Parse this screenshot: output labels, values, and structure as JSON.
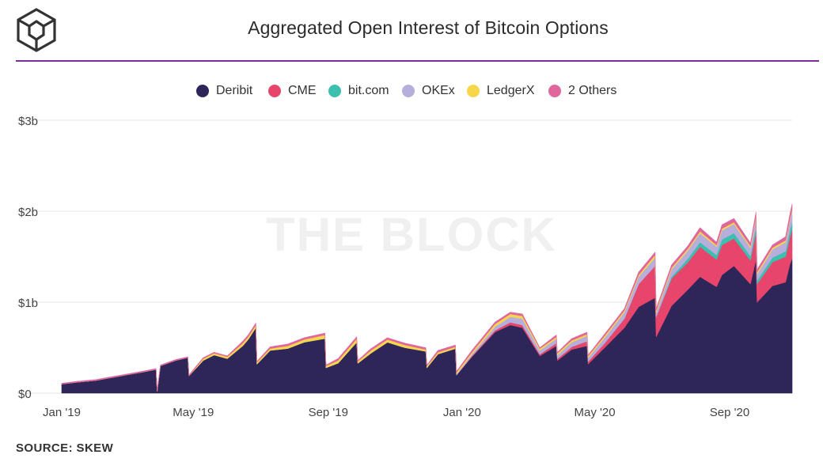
{
  "title": "Aggregated Open Interest of Bitcoin Options",
  "watermark": "THE BLOCK",
  "source": "SOURCE: SKEW",
  "logo_icon": "cube-logo-icon",
  "chart_data": {
    "type": "area",
    "stacked": true,
    "title": "Aggregated Open Interest of Bitcoin Options",
    "xlabel": "",
    "ylabel": "",
    "ylim": [
      0,
      3
    ],
    "yunit": "$b",
    "yticks": [
      0,
      1,
      2,
      3
    ],
    "ytick_labels": [
      "$0",
      "$1b",
      "$2b",
      "$3b"
    ],
    "xlim": [
      "2019-01-01",
      "2020-10-28"
    ],
    "xticks": [
      "2019-01-01",
      "2019-05-01",
      "2019-09-01",
      "2020-01-01",
      "2020-05-01",
      "2020-09-01"
    ],
    "xtick_labels": [
      "Jan '19",
      "May '19",
      "Sep '19",
      "Jan '20",
      "May '20",
      "Sep '20"
    ],
    "grid": true,
    "legend_position": "top-center",
    "x": [
      "2019-01-01",
      "2019-01-15",
      "2019-02-01",
      "2019-02-15",
      "2019-03-01",
      "2019-03-15",
      "2019-03-28",
      "2019-03-29",
      "2019-04-01",
      "2019-04-15",
      "2019-04-26",
      "2019-04-27",
      "2019-05-10",
      "2019-05-20",
      "2019-06-01",
      "2019-06-15",
      "2019-06-20",
      "2019-06-27",
      "2019-06-28",
      "2019-07-10",
      "2019-07-26",
      "2019-08-10",
      "2019-08-29",
      "2019-08-30",
      "2019-09-10",
      "2019-09-27",
      "2019-09-28",
      "2019-10-10",
      "2019-10-25",
      "2019-11-10",
      "2019-11-29",
      "2019-11-30",
      "2019-12-10",
      "2019-12-26",
      "2019-12-27",
      "2020-01-10",
      "2020-01-31",
      "2020-02-14",
      "2020-02-25",
      "2020-03-12",
      "2020-03-27",
      "2020-03-28",
      "2020-04-10",
      "2020-04-24",
      "2020-04-25",
      "2020-05-10",
      "2020-05-28",
      "2020-06-10",
      "2020-06-25",
      "2020-06-26",
      "2020-07-10",
      "2020-07-25",
      "2020-08-05",
      "2020-08-20",
      "2020-08-25",
      "2020-09-05",
      "2020-09-20",
      "2020-09-25",
      "2020-09-26",
      "2020-10-10",
      "2020-10-22",
      "2020-10-26",
      "2020-10-28"
    ],
    "series": [
      {
        "name": "Deribit",
        "color": "#2e2559",
        "values": [
          0.1,
          0.12,
          0.14,
          0.17,
          0.2,
          0.23,
          0.26,
          0.02,
          0.3,
          0.36,
          0.39,
          0.19,
          0.36,
          0.42,
          0.38,
          0.52,
          0.59,
          0.72,
          0.32,
          0.47,
          0.49,
          0.56,
          0.6,
          0.28,
          0.33,
          0.56,
          0.33,
          0.44,
          0.56,
          0.5,
          0.46,
          0.28,
          0.43,
          0.49,
          0.2,
          0.4,
          0.67,
          0.75,
          0.72,
          0.41,
          0.52,
          0.36,
          0.48,
          0.52,
          0.32,
          0.5,
          0.72,
          0.95,
          1.05,
          0.62,
          0.96,
          1.14,
          1.28,
          1.17,
          1.3,
          1.4,
          1.2,
          1.47,
          1.0,
          1.18,
          1.22,
          1.42,
          1.48
        ]
      },
      {
        "name": "CME",
        "color": "#e8456c",
        "values": [
          0.0,
          0.0,
          0.0,
          0.0,
          0.0,
          0.0,
          0.0,
          0.0,
          0.0,
          0.0,
          0.0,
          0.0,
          0.0,
          0.0,
          0.0,
          0.0,
          0.0,
          0.0,
          0.0,
          0.0,
          0.0,
          0.0,
          0.0,
          0.0,
          0.0,
          0.0,
          0.0,
          0.0,
          0.0,
          0.0,
          0.0,
          0.0,
          0.0,
          0.0,
          0.0,
          0.01,
          0.02,
          0.03,
          0.03,
          0.02,
          0.03,
          0.02,
          0.03,
          0.05,
          0.03,
          0.05,
          0.1,
          0.25,
          0.35,
          0.22,
          0.3,
          0.3,
          0.33,
          0.3,
          0.33,
          0.3,
          0.26,
          0.3,
          0.2,
          0.26,
          0.28,
          0.3,
          0.32
        ]
      },
      {
        "name": "bit.com",
        "color": "#3cbfae",
        "values": [
          0.0,
          0.0,
          0.0,
          0.0,
          0.0,
          0.0,
          0.0,
          0.0,
          0.0,
          0.0,
          0.0,
          0.0,
          0.0,
          0.0,
          0.0,
          0.0,
          0.0,
          0.0,
          0.0,
          0.0,
          0.0,
          0.0,
          0.0,
          0.0,
          0.0,
          0.0,
          0.0,
          0.0,
          0.0,
          0.0,
          0.0,
          0.0,
          0.0,
          0.0,
          0.0,
          0.0,
          0.0,
          0.0,
          0.0,
          0.0,
          0.0,
          0.0,
          0.0,
          0.0,
          0.0,
          0.0,
          0.0,
          0.0,
          0.0,
          0.0,
          0.02,
          0.04,
          0.05,
          0.05,
          0.06,
          0.06,
          0.05,
          0.06,
          0.04,
          0.05,
          0.06,
          0.07,
          0.08
        ]
      },
      {
        "name": "OKEx",
        "color": "#b7aedc",
        "values": [
          0.0,
          0.0,
          0.0,
          0.0,
          0.0,
          0.0,
          0.0,
          0.0,
          0.0,
          0.0,
          0.0,
          0.0,
          0.0,
          0.0,
          0.0,
          0.0,
          0.0,
          0.0,
          0.0,
          0.0,
          0.0,
          0.0,
          0.0,
          0.0,
          0.0,
          0.0,
          0.0,
          0.0,
          0.0,
          0.0,
          0.0,
          0.0,
          0.0,
          0.0,
          0.01,
          0.02,
          0.04,
          0.06,
          0.07,
          0.04,
          0.05,
          0.04,
          0.05,
          0.06,
          0.04,
          0.06,
          0.07,
          0.08,
          0.09,
          0.05,
          0.08,
          0.09,
          0.1,
          0.09,
          0.1,
          0.1,
          0.09,
          0.1,
          0.07,
          0.09,
          0.1,
          0.11,
          0.12
        ]
      },
      {
        "name": "LedgerX",
        "color": "#f7d64a",
        "values": [
          0.0,
          0.0,
          0.0,
          0.0,
          0.0,
          0.0,
          0.0,
          0.0,
          0.0,
          0.0,
          0.0,
          0.0,
          0.02,
          0.02,
          0.02,
          0.03,
          0.03,
          0.03,
          0.02,
          0.02,
          0.03,
          0.03,
          0.04,
          0.02,
          0.03,
          0.04,
          0.02,
          0.03,
          0.03,
          0.03,
          0.02,
          0.02,
          0.02,
          0.02,
          0.02,
          0.02,
          0.03,
          0.03,
          0.03,
          0.02,
          0.02,
          0.02,
          0.02,
          0.02,
          0.02,
          0.02,
          0.02,
          0.02,
          0.03,
          0.02,
          0.02,
          0.02,
          0.02,
          0.02,
          0.02,
          0.02,
          0.02,
          0.02,
          0.02,
          0.02,
          0.02,
          0.02,
          0.02
        ]
      },
      {
        "name": "2 Others",
        "color": "#e0679e",
        "values": [
          0.01,
          0.01,
          0.01,
          0.01,
          0.01,
          0.01,
          0.01,
          0.01,
          0.01,
          0.01,
          0.01,
          0.01,
          0.01,
          0.01,
          0.01,
          0.02,
          0.02,
          0.02,
          0.01,
          0.02,
          0.02,
          0.02,
          0.02,
          0.01,
          0.02,
          0.02,
          0.01,
          0.02,
          0.02,
          0.02,
          0.02,
          0.01,
          0.02,
          0.02,
          0.01,
          0.02,
          0.02,
          0.02,
          0.02,
          0.01,
          0.02,
          0.01,
          0.02,
          0.02,
          0.01,
          0.02,
          0.02,
          0.03,
          0.03,
          0.02,
          0.03,
          0.03,
          0.04,
          0.03,
          0.04,
          0.04,
          0.03,
          0.04,
          0.03,
          0.03,
          0.04,
          0.05,
          0.06
        ]
      }
    ]
  }
}
